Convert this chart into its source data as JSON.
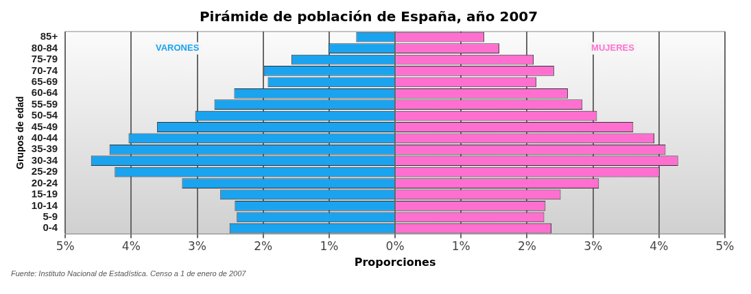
{
  "chart_data": {
    "type": "bar",
    "orientation": "horizontal",
    "stacked": true,
    "title": "Pirámide de población de España, año 2007",
    "xlabel": "Proporciones",
    "ylabel": "Grupos de edad",
    "annotations": [
      "Fuente: Instituto Nacional de Estadística. Censo a 1 de enero de 2007"
    ],
    "categories": [
      "85+",
      "80-84",
      "75-79",
      "70-74",
      "65-69",
      "60-64",
      "55-59",
      "50-54",
      "45-49",
      "40-44",
      "35-39",
      "30-34",
      "25-29",
      "20-24",
      "15-19",
      "10-14",
      "5-9",
      "0-4"
    ],
    "series": [
      {
        "name": "VARONES",
        "color": "#1aa3ef",
        "values": [
          -0.59,
          -1.01,
          -1.57,
          -1.99,
          -1.93,
          -2.44,
          -2.74,
          -3.03,
          -3.61,
          -4.04,
          -4.33,
          -4.61,
          -4.25,
          -3.23,
          -2.65,
          -2.43,
          -2.4,
          -2.51
        ]
      },
      {
        "name": "MUJERES",
        "color": "#ff6fd0",
        "values": [
          1.35,
          1.58,
          2.1,
          2.41,
          2.14,
          2.62,
          2.84,
          3.06,
          3.61,
          3.93,
          4.1,
          4.29,
          4.01,
          3.09,
          2.51,
          2.28,
          2.26,
          2.37
        ]
      }
    ],
    "xlim": [
      -5,
      5
    ],
    "xticks": [
      {
        "value": -5,
        "label": "5%"
      },
      {
        "value": -4,
        "label": "4%"
      },
      {
        "value": -3,
        "label": "3%"
      },
      {
        "value": -2,
        "label": "2%"
      },
      {
        "value": -1,
        "label": "1%"
      },
      {
        "value": 0,
        "label": "0%"
      },
      {
        "value": 1,
        "label": "1%"
      },
      {
        "value": 2,
        "label": "2%"
      },
      {
        "value": 3,
        "label": "3%"
      },
      {
        "value": 4,
        "label": "4%"
      },
      {
        "value": 5,
        "label": "5%"
      }
    ],
    "grid": "x",
    "legend": false
  }
}
